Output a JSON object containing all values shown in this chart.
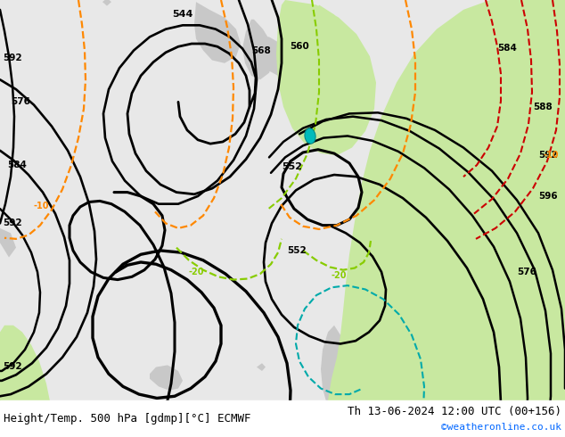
{
  "title_left": "Height/Temp. 500 hPa [gdmp][°C] ECMWF",
  "title_right": "Th 13-06-2024 12:00 UTC (00+156)",
  "credit": "©weatheronline.co.uk",
  "bg_ocean": "#e8e8e8",
  "bg_land": "#c8c8c8",
  "green_warm": "#c8e8a0",
  "title_fontsize": 9.0,
  "credit_fontsize": 8.0,
  "credit_color": "#0066ff",
  "bottom_bar": "#ffffff"
}
